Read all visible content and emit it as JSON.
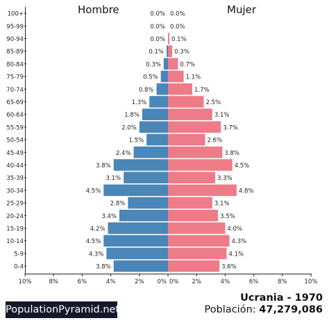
{
  "chart_data": {
    "type": "bar",
    "orientation": "horizontal-population-pyramid",
    "left_label": "Hombre",
    "right_label": "Mujer",
    "categories": [
      "100+",
      "95-99",
      "90-94",
      "85-89",
      "80-84",
      "75-79",
      "70-74",
      "65-69",
      "60-64",
      "55-59",
      "50-54",
      "45-49",
      "40-44",
      "35-39",
      "30-34",
      "25-29",
      "20-24",
      "15-19",
      "10-14",
      "5-9",
      "0-4"
    ],
    "series": [
      {
        "name": "Hombre",
        "color": "#4a86b8",
        "values": [
          0.0,
          0.0,
          0.0,
          0.1,
          0.3,
          0.5,
          0.8,
          1.3,
          1.8,
          2.0,
          1.5,
          2.4,
          3.8,
          3.1,
          4.5,
          2.8,
          3.4,
          4.2,
          4.5,
          4.3,
          3.8
        ],
        "value_labels": [
          "0.0%",
          "0.0%",
          "0.0%",
          "0.1%",
          "0.3%",
          "0.5%",
          "0.8%",
          "1.3%",
          "1.8%",
          "2.0%",
          "1.5%",
          "2.4%",
          "3.8%",
          "3.1%",
          "4.5%",
          "2.8%",
          "3.4%",
          "4.2%",
          "4.5%",
          "4.3%",
          "3.8%"
        ]
      },
      {
        "name": "Mujer",
        "color": "#ee7b88",
        "values": [
          0.0,
          0.0,
          0.1,
          0.3,
          0.7,
          1.1,
          1.7,
          2.5,
          3.1,
          3.7,
          2.6,
          3.8,
          4.5,
          3.3,
          4.8,
          3.1,
          3.5,
          4.0,
          4.3,
          4.1,
          3.6
        ],
        "value_labels": [
          "0.0%",
          "0.0%",
          "0.1%",
          "0.3%",
          "0.7%",
          "1.1%",
          "1.7%",
          "2.5%",
          "3.1%",
          "3.7%",
          "2.6%",
          "3.8%",
          "4.5%",
          "3.3%",
          "4.8%",
          "3.1%",
          "3.5%",
          "4.0%",
          "4.3%",
          "4.1%",
          "3.6%"
        ]
      }
    ],
    "xlim": [
      0,
      10
    ],
    "x_ticks_left": [
      "10%",
      "8%",
      "6%",
      "4%",
      "2%",
      "0%"
    ],
    "x_ticks_right": [
      "0%",
      "2%",
      "4%",
      "6%",
      "8%",
      "10%"
    ],
    "grid": false
  },
  "brand": "PopulationPyramid.net",
  "footer": {
    "country_year": "Ucrania - 1970",
    "population_label": "Población: ",
    "population_value": "47,279,086"
  }
}
